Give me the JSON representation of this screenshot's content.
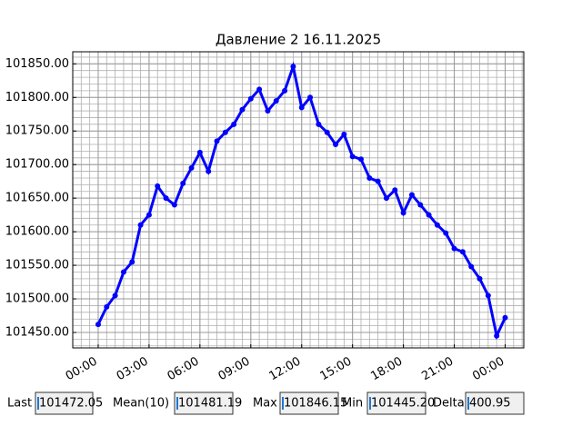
{
  "chart_data": {
    "type": "line",
    "title": "Давление 2 16.11.2025",
    "x": [
      0,
      0.5,
      1,
      1.5,
      2,
      2.5,
      3,
      3.5,
      4,
      4.5,
      5,
      5.5,
      6,
      6.5,
      7,
      7.5,
      8,
      8.5,
      9,
      9.5,
      10,
      10.5,
      11,
      11.5,
      12,
      12.5,
      13,
      13.5,
      14,
      14.5,
      15,
      15.5,
      16,
      16.5,
      17,
      17.5,
      18,
      18.5,
      19,
      19.5,
      20,
      20.5,
      21,
      21.5,
      22,
      22.5,
      23,
      23.5,
      24
    ],
    "series": [
      {
        "color": "#0000ff",
        "values": [
          101462,
          101488,
          101505,
          101540,
          101555,
          101610,
          101625,
          101668,
          101650,
          101640,
          101672,
          101695,
          101718,
          101690,
          101735,
          101748,
          101760,
          101782,
          101798,
          101812,
          101780,
          101795,
          101810,
          101846,
          101785,
          101800,
          101760,
          101748,
          101730,
          101745,
          101712,
          101708,
          101680,
          101675,
          101650,
          101662,
          101628,
          101655,
          101640,
          101625,
          101610,
          101598,
          101575,
          101570,
          101548,
          101530,
          101505,
          101445,
          101472
        ]
      }
    ],
    "xlim": [
      -1.5,
      25.1
    ],
    "ylim": [
      101427,
      101868
    ],
    "xticks": [
      {
        "value": 0,
        "label": "00:00"
      },
      {
        "value": 3,
        "label": "03:00"
      },
      {
        "value": 6,
        "label": "06:00"
      },
      {
        "value": 9,
        "label": "09:00"
      },
      {
        "value": 12,
        "label": "12:00"
      },
      {
        "value": 15,
        "label": "15:00"
      },
      {
        "value": 18,
        "label": "18:00"
      },
      {
        "value": 21,
        "label": "21:00"
      },
      {
        "value": 24,
        "label": "00:00"
      }
    ],
    "yticks": [
      {
        "value": 101450,
        "label": "101450.00"
      },
      {
        "value": 101500,
        "label": "101500.00"
      },
      {
        "value": 101550,
        "label": "101550.00"
      },
      {
        "value": 101600,
        "label": "101600.00"
      },
      {
        "value": 101650,
        "label": "101650.00"
      },
      {
        "value": 101700,
        "label": "101700.00"
      },
      {
        "value": 101750,
        "label": "101750.00"
      },
      {
        "value": 101800,
        "label": "101800.00"
      },
      {
        "value": 101850,
        "label": "101850.00"
      }
    ],
    "xminorticks": [
      -1.5,
      -1,
      -0.5,
      0,
      0.5,
      1,
      1.5,
      2,
      2.5,
      3,
      3.5,
      4,
      4.5,
      5,
      5.5,
      6,
      6.5,
      7,
      7.5,
      8,
      8.5,
      9,
      9.5,
      10,
      10.5,
      11,
      11.5,
      12,
      12.5,
      13,
      13.5,
      14,
      14.5,
      15,
      15.5,
      16,
      16.5,
      17,
      17.5,
      18,
      18.5,
      19,
      19.5,
      20,
      20.5,
      21,
      21.5,
      22,
      22.5,
      23,
      23.5,
      24,
      24.5,
      25
    ],
    "yminorticks": [
      101430,
      101440,
      101450,
      101460,
      101470,
      101480,
      101490,
      101500,
      101510,
      101520,
      101530,
      101540,
      101550,
      101560,
      101570,
      101580,
      101590,
      101600,
      101610,
      101620,
      101630,
      101640,
      101650,
      101660,
      101670,
      101680,
      101690,
      101700,
      101710,
      101720,
      101730,
      101740,
      101750,
      101760,
      101770,
      101780,
      101790,
      101800,
      101810,
      101820,
      101830,
      101840,
      101850,
      101860
    ],
    "grid": true
  },
  "stats": [
    {
      "label": "Last",
      "value": "101472.05"
    },
    {
      "label": "Mean(10)",
      "value": "101481.19"
    },
    {
      "label": "Max",
      "value": "101846.15"
    },
    {
      "label": "Min",
      "value": "101445.20"
    },
    {
      "label": "Delta",
      "value": "400.95"
    }
  ]
}
